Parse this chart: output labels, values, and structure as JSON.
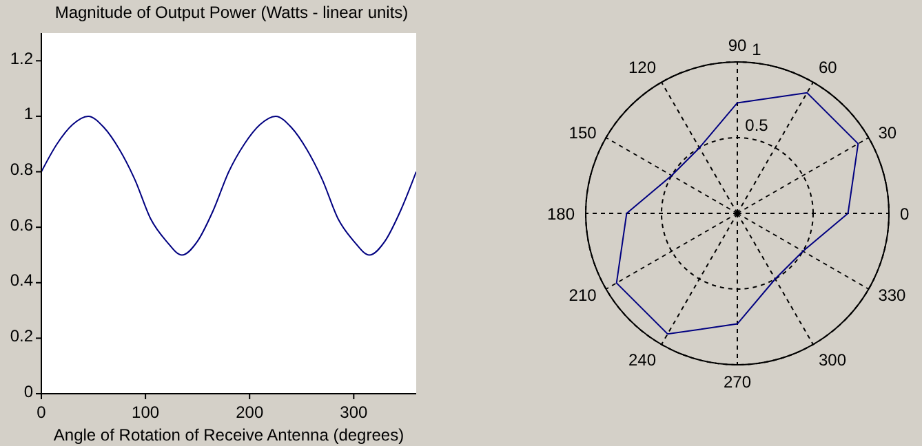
{
  "chart_data": [
    {
      "type": "line",
      "title": "Magnitude of Output Power (Watts - linear units)",
      "xlabel": "Angle of Rotation of Receive Antenna (degrees)",
      "x": [
        0,
        15,
        30,
        45,
        60,
        75,
        90,
        105,
        120,
        135,
        150,
        165,
        180,
        195,
        210,
        225,
        240,
        255,
        270,
        285,
        300,
        315,
        330,
        345,
        360
      ],
      "series": [
        {
          "color": "#000080",
          "values": [
            0.8,
            0.9,
            0.97,
            1,
            0.96,
            0.88,
            0.77,
            0.63,
            0.55,
            0.5,
            0.55,
            0.66,
            0.8,
            0.9,
            0.97,
            1,
            0.96,
            0.88,
            0.77,
            0.63,
            0.55,
            0.5,
            0.55,
            0.66,
            0.8
          ]
        }
      ],
      "xlim": [
        0,
        360
      ],
      "xticks": [
        0,
        100,
        200,
        300
      ],
      "ylim": [
        0,
        1.3
      ],
      "yticks": [
        0,
        0.2,
        0.4,
        0.6,
        0.8,
        1,
        1.2
      ],
      "grid": false
    },
    {
      "type": "radar",
      "categories": [
        "90",
        "60",
        "30",
        "0",
        "330",
        "300",
        "270",
        "240",
        "210",
        "180",
        "150",
        "120"
      ],
      "series": [
        {
          "color": "#000080",
          "values": [
            0.73,
            0.92,
            0.92,
            0.73,
            0.5,
            0.5,
            0.73,
            0.92,
            0.92,
            0.73,
            0.5,
            0.5
          ]
        }
      ],
      "ylim": [
        0,
        1
      ],
      "yticks": [
        0.5,
        1
      ],
      "grid": true
    }
  ]
}
